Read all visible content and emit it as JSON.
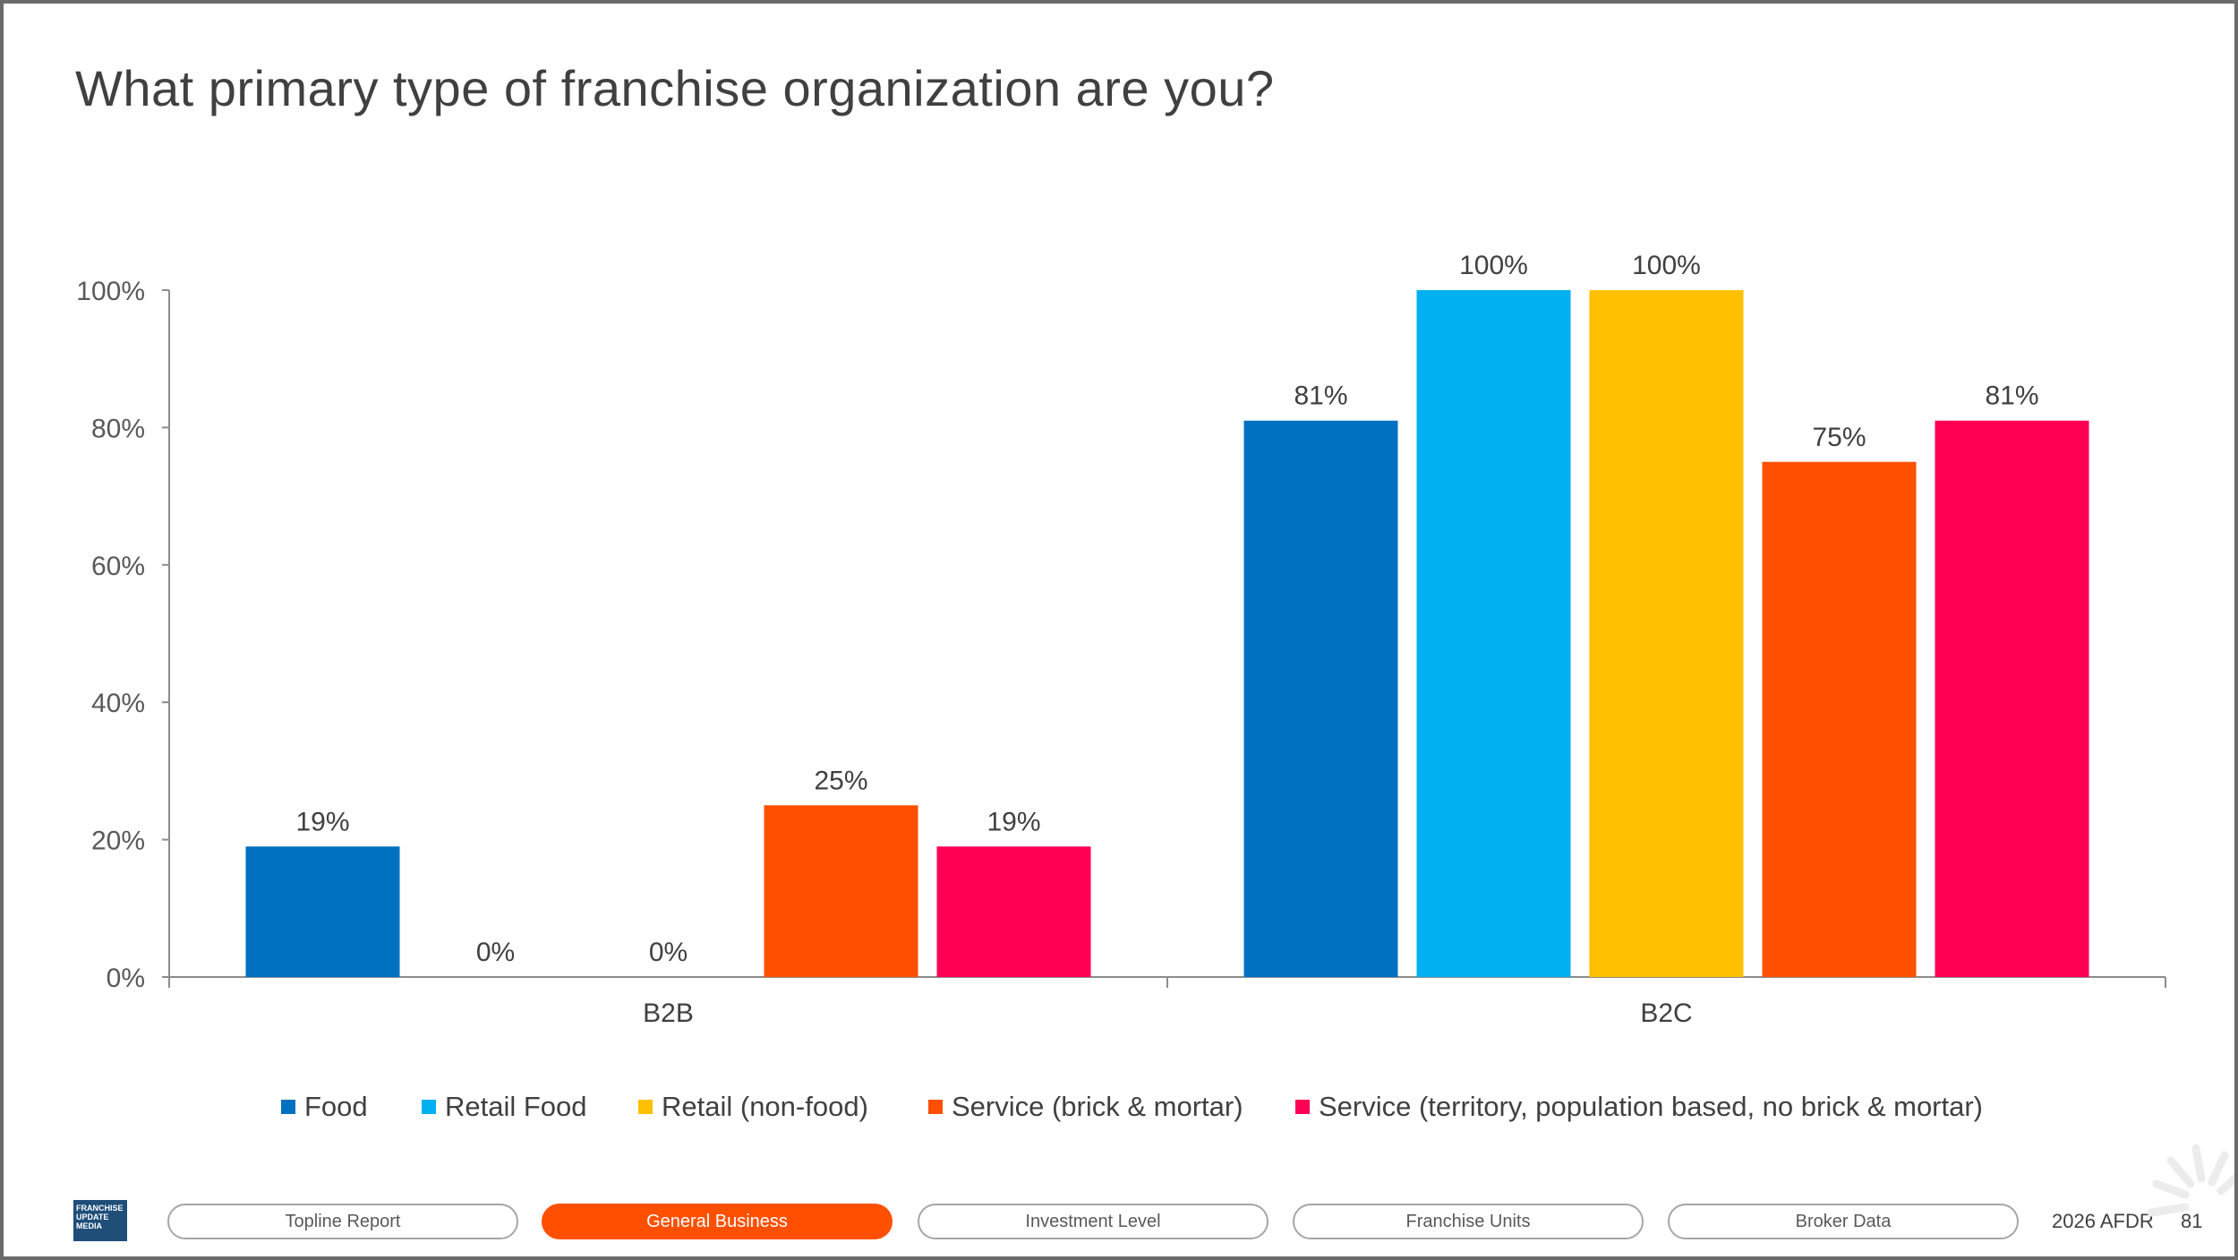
{
  "title": "What primary type of franchise organization are you?",
  "chart_data": {
    "type": "bar",
    "title": "What primary type of franchise organization are you?",
    "categories": [
      "B2B",
      "B2C"
    ],
    "series": [
      {
        "name": "Food",
        "color": "#0070c0",
        "values": [
          19,
          81
        ],
        "labels": [
          "19%",
          "81%"
        ]
      },
      {
        "name": "Retail Food",
        "color": "#00b0f0",
        "values": [
          0,
          100
        ],
        "labels": [
          "0%",
          "100%"
        ]
      },
      {
        "name": "Retail (non-food)",
        "color": "#ffc000",
        "values": [
          0,
          100
        ],
        "labels": [
          "0%",
          "100%"
        ]
      },
      {
        "name": "Service (brick & mortar)",
        "color": "#fe5000",
        "values": [
          25,
          75
        ],
        "labels": [
          "25%",
          "75%"
        ]
      },
      {
        "name": "Service (territory, population based, no brick & mortar)",
        "color": "#ff0055",
        "values": [
          19,
          81
        ],
        "labels": [
          "19%",
          "81%"
        ]
      }
    ],
    "yticks": [
      "0%",
      "20%",
      "40%",
      "60%",
      "80%",
      "100%"
    ],
    "ylim": [
      0,
      100
    ],
    "xlabel": "",
    "ylabel": "",
    "grid": false,
    "legend": "bottom"
  },
  "legend": [
    {
      "label": "Food",
      "color": "#0070c0"
    },
    {
      "label": "Retail Food",
      "color": "#00b0f0"
    },
    {
      "label": "Retail (non-food)",
      "color": "#ffc000"
    },
    {
      "label": "Service (brick & mortar)",
      "color": "#fe5000"
    },
    {
      "label": "Service (territory, population based, no brick & mortar)",
      "color": "#ff0055"
    }
  ],
  "footer": {
    "logo_text": "FRANCHISE UPDATE MEDIA",
    "nav": [
      {
        "label": "Topline Report",
        "active": false
      },
      {
        "label": "General Business",
        "active": true
      },
      {
        "label": "Investment Level",
        "active": false
      },
      {
        "label": "Franchise Units",
        "active": false
      },
      {
        "label": "Broker Data",
        "active": false
      }
    ],
    "report": "2026 AFDR",
    "page": "81"
  }
}
